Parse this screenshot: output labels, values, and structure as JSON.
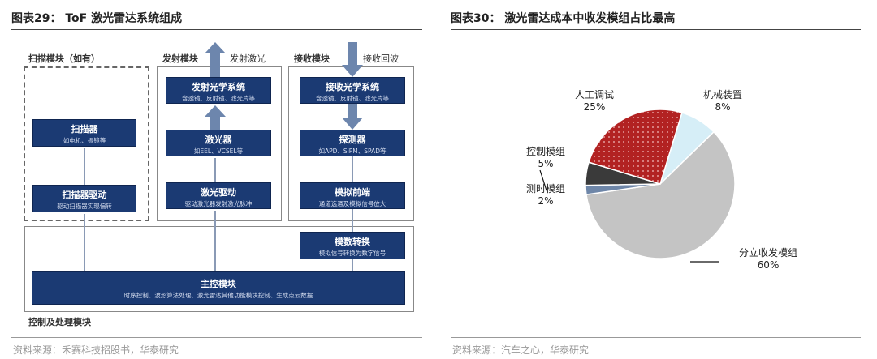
{
  "left": {
    "title": "图表29：  ToF 激光雷达系统组成",
    "source": "资料来源：禾赛科技招股书，华泰研究",
    "scan_module": {
      "label": "扫描模块（如有）",
      "scanner": {
        "name": "扫描器",
        "desc": "如电机、振镜等"
      },
      "driver": {
        "name": "扫描器驱动",
        "desc": "驱动扫描器实现偏转"
      }
    },
    "tx_module": {
      "label": "发射模块",
      "arrow_label": "发射激光",
      "optics": {
        "name": "发射光学系统",
        "desc": "含透镜、反射镜、滤光片等"
      },
      "laser": {
        "name": "激光器",
        "desc": "如EEL、VCSEL等"
      },
      "driver": {
        "name": "激光驱动",
        "desc": "驱动激光器发射激光脉冲"
      }
    },
    "rx_module": {
      "label": "接收模块",
      "arrow_label": "接收回波",
      "optics": {
        "name": "接收光学系统",
        "desc": "含透镜、反射镜、滤光片等"
      },
      "detector": {
        "name": "探测器",
        "desc": "如APD、SiPM、SPAD等"
      },
      "afe": {
        "name": "模拟前端",
        "desc": "通道选通及模拟信号放大"
      }
    },
    "control_module": {
      "label": "控制及处理模块",
      "adc": {
        "name": "模数转换",
        "desc": "模拟信号转换为数字信号"
      },
      "main": {
        "name": "主控模块",
        "desc": "时序控制、波形算法处理、激光雷达其他功能模块控制、生成点云数据"
      }
    },
    "colors": {
      "box": "#1b3a73",
      "arrow": "#6d86ad"
    }
  },
  "right": {
    "title": "图表30：  激光雷达成本中收发模组占比最高",
    "source": "资料来源：汽车之心，华泰研究"
  },
  "chart_data": {
    "type": "pie",
    "slices": [
      {
        "label": "机械装置",
        "value": 8,
        "pct": "8%",
        "color": "#d6eef7"
      },
      {
        "label": "分立收发模组",
        "value": 60,
        "pct": "60%",
        "color": "#c4c4c4"
      },
      {
        "label": "测时模组",
        "value": 2,
        "pct": "2%",
        "color": "#6e86a8"
      },
      {
        "label": "控制模组",
        "value": 5,
        "pct": "5%",
        "color": "#3a3a3a"
      },
      {
        "label": "人工调试",
        "value": 25,
        "pct": "25%",
        "color": "#b22222",
        "pattern": "dotted"
      }
    ],
    "order": "clockwise"
  }
}
